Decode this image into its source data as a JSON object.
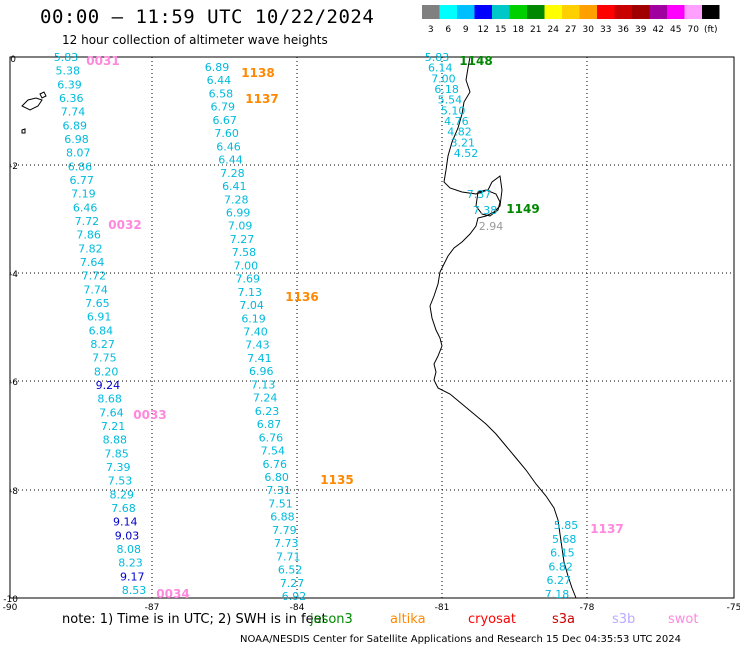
{
  "title": "00:00 — 11:59 UTC 10/22/2024",
  "subtitle": "12 hour collection of altimeter wave heights",
  "colorbar": {
    "colors": [
      "#808080",
      "#00ffff",
      "#00bfff",
      "#0000ff",
      "#00c8c8",
      "#00d000",
      "#008800",
      "#ffff00",
      "#ffd000",
      "#ffa000",
      "#ff0000",
      "#c80000",
      "#a00000",
      "#a000a0",
      "#ff00ff",
      "#ffa0ff",
      "#000000"
    ],
    "labels": [
      "3",
      "6",
      "9",
      "12",
      "15",
      "18",
      "21",
      "24",
      "27",
      "30",
      "33",
      "36",
      "39",
      "42",
      "45",
      "70",
      "(ft)"
    ]
  },
  "axes": {
    "x_ticks": [
      "-90",
      "-87",
      "-84",
      "-81",
      "-78",
      "-75"
    ],
    "y_ticks": [
      "0",
      "-2",
      "-4",
      "-6",
      "-8",
      "-10"
    ]
  },
  "passes": [
    {
      "label": "0031",
      "color": "#ff88dd"
    },
    {
      "label": "0032",
      "color": "#ff88dd"
    },
    {
      "label": "0033",
      "color": "#ff88dd"
    },
    {
      "label": "0034",
      "color": "#ff88dd"
    },
    {
      "label": "1138",
      "color": "#ff8800"
    },
    {
      "label": "1137",
      "color": "#ff8800"
    },
    {
      "label": "1136",
      "color": "#ff8800"
    },
    {
      "label": "1135",
      "color": "#ff8800"
    },
    {
      "label": "1148",
      "color": "#008800"
    },
    {
      "label": "1149",
      "color": "#008800"
    },
    {
      "label": "1137",
      "color": "#ff88dd"
    }
  ],
  "track_a": [
    "5.83",
    "5.38",
    "6.39",
    "6.36",
    "7.74",
    "6.89",
    "6.98",
    "8.07",
    "6.86",
    "6.77",
    "7.19",
    "6.46",
    "7.72",
    "7.86",
    "7.82",
    "7.64",
    "7.72",
    "7.74",
    "7.65",
    "6.91",
    "6.84",
    "8.27",
    "7.75",
    "8.20",
    "9.24",
    "8.68",
    "7.64",
    "7.21",
    "8.88",
    "7.85",
    "7.39",
    "7.53",
    "8.29",
    "7.68",
    "9.14",
    "9.03",
    "8.08",
    "8.23",
    "9.17",
    "8.53"
  ],
  "track_b": [
    "6.89",
    "6.44",
    "6.58",
    "6.79",
    "6.67",
    "7.60",
    "6.46",
    "6.44",
    "7.28",
    "6.41",
    "7.28",
    "6.99",
    "7.09",
    "7.27",
    "7.58",
    "7.00",
    "7.69",
    "7.13",
    "7.04",
    "6.19",
    "7.40",
    "7.43",
    "7.41",
    "6.96",
    "7.13",
    "7.24",
    "6.23",
    "6.87",
    "6.76",
    "7.54",
    "6.76",
    "6.80",
    "7.31",
    "7.51",
    "6.88",
    "7.79",
    "7.73",
    "7.71",
    "6.52",
    "7.27",
    "6.92"
  ],
  "track_c": [
    "5.83",
    "6.14",
    "7.00",
    "6.18",
    "5.54",
    "5.10",
    "4.76",
    "4.82",
    "3.21",
    "4.52"
  ],
  "track_d": [
    "7.37",
    "7.38",
    "2.94"
  ],
  "track_e": [
    "5.85",
    "5.68",
    "6.15",
    "6.82",
    "6.27",
    "7.18"
  ],
  "note": {
    "prefix": "note:  1) Time is in UTC;  2) SWH is in feet",
    "satellites": [
      {
        "name": "jason3",
        "color": "#008800"
      },
      {
        "name": "altika",
        "color": "#ff8800"
      },
      {
        "name": "cryosat",
        "color": "#ff0000"
      },
      {
        "name": "s3a",
        "color": "#cc0000"
      },
      {
        "name": "s3b",
        "color": "#bbaaff"
      },
      {
        "name": "swot",
        "color": "#ff88dd"
      }
    ]
  },
  "footer": "NOAA/NESDIS Center for Satellite Applications and Research     15 Dec 04:35:53 UTC 2024"
}
